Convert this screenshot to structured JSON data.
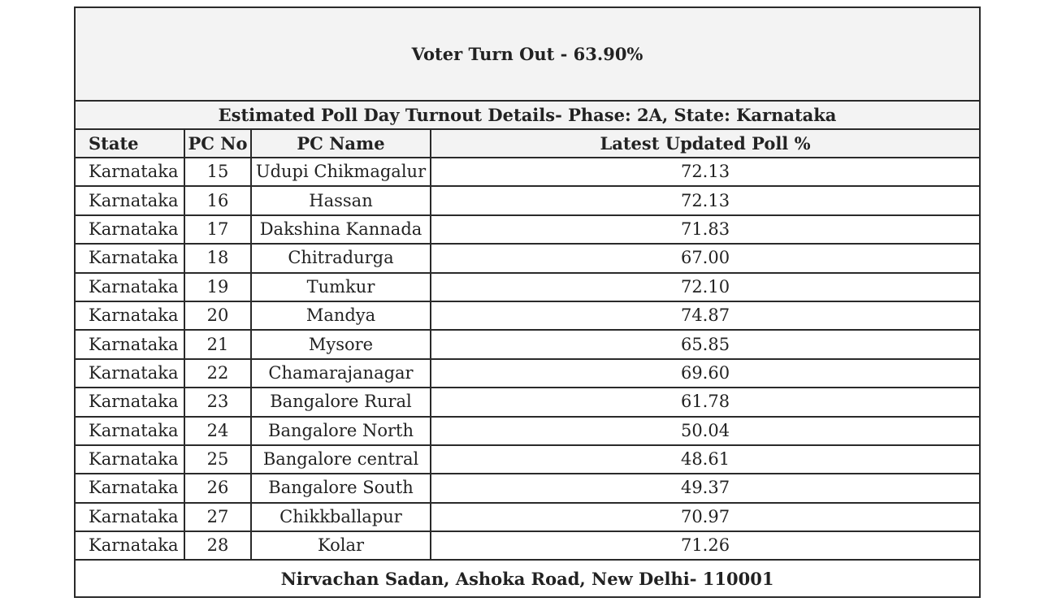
{
  "title": "Voter Turn Out - 63.90%",
  "subtitle": "Estimated Poll Day Turnout Details- Phase: 2A, State: Karnataka",
  "table": {
    "header": [
      "State",
      "PC No",
      "PC Name",
      "Latest Updated Poll %"
    ],
    "rows": [
      [
        "Karnataka",
        "15",
        "Udupi Chikmagalur",
        "72.13"
      ],
      [
        "Karnataka",
        "16",
        "Hassan",
        "72.13"
      ],
      [
        "Karnataka",
        "17",
        "Dakshina Kannada",
        "71.83"
      ],
      [
        "Karnataka",
        "18",
        "Chitradurga",
        "67.00"
      ],
      [
        "Karnataka",
        "19",
        "Tumkur",
        "72.10"
      ],
      [
        "Karnataka",
        "20",
        "Mandya",
        "74.87"
      ],
      [
        "Karnataka",
        "21",
        "Mysore",
        "65.85"
      ],
      [
        "Karnataka",
        "22",
        "Chamarajanagar",
        "69.60"
      ],
      [
        "Karnataka",
        "23",
        "Bangalore Rural",
        "61.78"
      ],
      [
        "Karnataka",
        "24",
        "Bangalore North",
        "50.04"
      ],
      [
        "Karnataka",
        "25",
        "Bangalore central",
        "48.61"
      ],
      [
        "Karnataka",
        "26",
        "Bangalore South",
        "49.37"
      ],
      [
        "Karnataka",
        "27",
        "Chikkballapur",
        "70.97"
      ],
      [
        "Karnataka",
        "28",
        "Kolar",
        "71.26"
      ]
    ]
  },
  "footer": "Nirvachan Sadan, Ashoka Road, New Delhi- 110001"
}
